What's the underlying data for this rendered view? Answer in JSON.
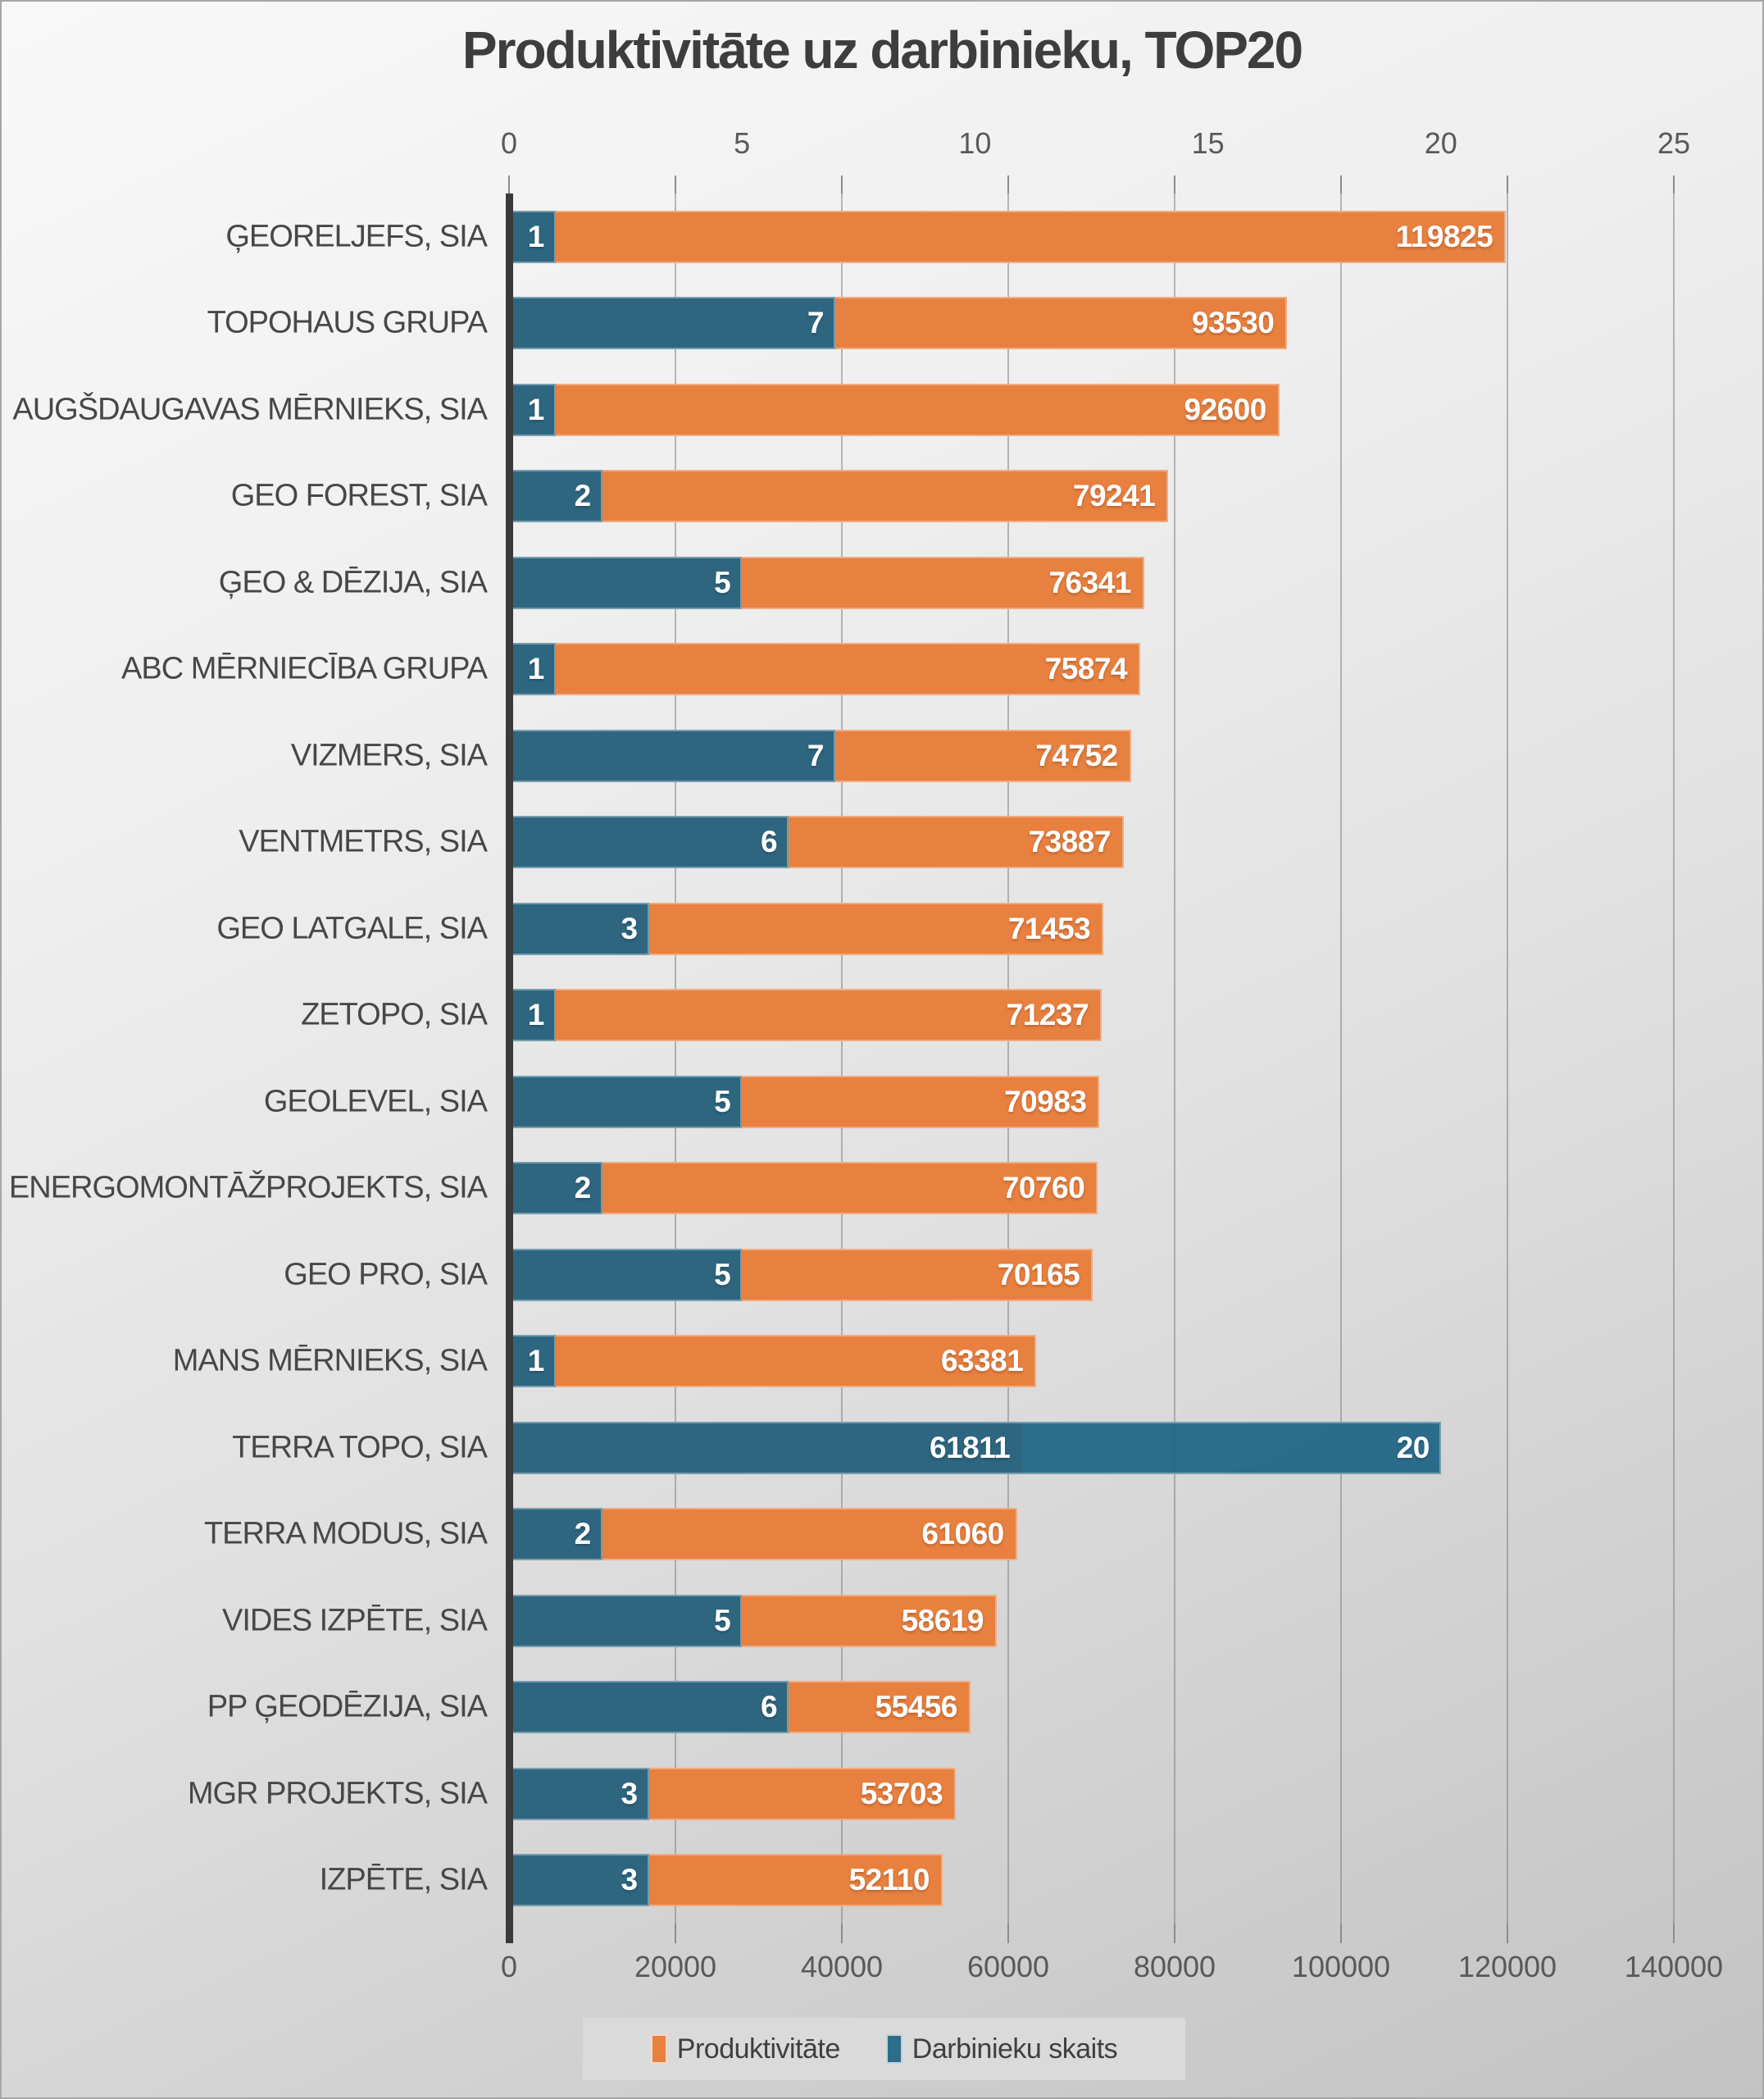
{
  "chart_data": {
    "type": "bar",
    "orientation": "horizontal",
    "title": "Produktivitāte uz darbinieku, TOP20",
    "categories": [
      "ĢEORELJEFS, SIA",
      "TOPOHAUS GRUPA",
      "AUGŠDAUGAVAS MĒRNIEKS, SIA",
      "GEO FOREST, SIA",
      "ĢEO & DĒZIJA, SIA",
      "ABC MĒRNIECĪBA GRUPA",
      "VIZMERS, SIA",
      "VENTMETRS, SIA",
      "GEO LATGALE, SIA",
      "ZETOPO, SIA",
      "GEOLEVEL, SIA",
      "ENERGOMONTĀŽPROJEKTS, SIA",
      "GEO PRO, SIA",
      "MANS MĒRNIEKS, SIA",
      "TERRA TOPO, SIA",
      "TERRA MODUS, SIA",
      "VIDES IZPĒTE, SIA",
      "PP ĢEODĒZIJA, SIA",
      "MGR PROJEKTS, SIA",
      "IZPĒTE, SIA"
    ],
    "series": [
      {
        "name": "Produktivitāte",
        "axis": "bottom",
        "color": "#e8803f",
        "values": [
          119825,
          93530,
          92600,
          79241,
          76341,
          75874,
          74752,
          73887,
          71453,
          71237,
          70983,
          70760,
          70165,
          63381,
          61811,
          61060,
          58619,
          55456,
          53703,
          52110
        ]
      },
      {
        "name": "Darbinieku skaits",
        "axis": "top",
        "color": "#2e6b85",
        "values": [
          1,
          7,
          1,
          2,
          5,
          1,
          7,
          6,
          3,
          1,
          5,
          2,
          5,
          1,
          20,
          2,
          5,
          6,
          3,
          3
        ]
      }
    ],
    "top_axis": {
      "ticks": [
        0,
        5,
        10,
        15,
        20,
        25
      ],
      "max": 25
    },
    "bottom_axis": {
      "ticks": [
        0,
        20000,
        40000,
        60000,
        80000,
        100000,
        120000,
        140000
      ],
      "max": 140000
    },
    "grid": "vertical, at bottom-axis major units",
    "legend_position": "bottom"
  },
  "colors": {
    "orange": "#e8803f",
    "blue": "rgba(31,100,133,0.93)",
    "title_text": "#3d3d3d",
    "axis_text": "#595959",
    "category_text": "#474747",
    "axis_line": "#3a3a3a",
    "legend_bg": "#dadada"
  }
}
